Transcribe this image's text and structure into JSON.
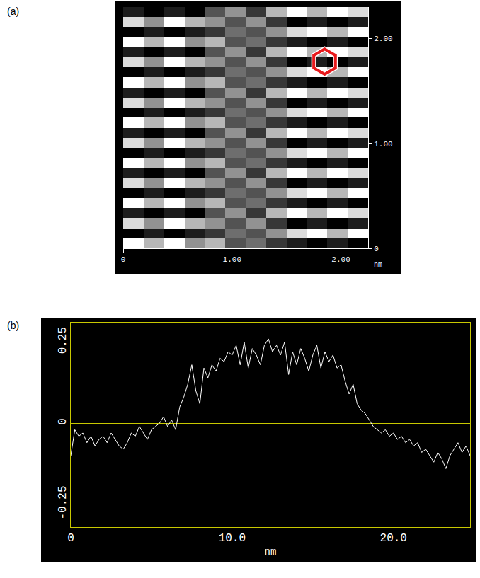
{
  "chart_data": [
    {
      "panel": "(a)",
      "type": "heatmap",
      "x_label": "nm",
      "xlim": [
        0,
        2.25
      ],
      "ylim": [
        0,
        2.3
      ],
      "xticks": [
        0,
        {
          "value": 1,
          "label": "1.00"
        },
        {
          "value": 2,
          "label": "2.00"
        }
      ],
      "yticks": [
        0,
        {
          "value": 1,
          "label": "1.00"
        },
        {
          "value": 2,
          "label": "2.00"
        }
      ],
      "z": [
        [
          9,
          7,
          9,
          6,
          7,
          4,
          5,
          3,
          2,
          1,
          2,
          1
        ],
        [
          1,
          2,
          1,
          2,
          3,
          5,
          4,
          6,
          8,
          9,
          7,
          9
        ],
        [
          8,
          6,
          9,
          7,
          6,
          4,
          6,
          3,
          1,
          2,
          1,
          2
        ],
        [
          2,
          1,
          2,
          1,
          4,
          6,
          3,
          7,
          9,
          7,
          9,
          8
        ],
        [
          9,
          7,
          9,
          6,
          7,
          4,
          5,
          3,
          2,
          1,
          2,
          1
        ],
        [
          1,
          2,
          1,
          2,
          3,
          5,
          4,
          6,
          8,
          9,
          7,
          9
        ],
        [
          8,
          6,
          9,
          7,
          6,
          4,
          6,
          3,
          1,
          2,
          1,
          2
        ],
        [
          2,
          1,
          2,
          1,
          4,
          6,
          3,
          7,
          9,
          7,
          9,
          8
        ],
        [
          9,
          7,
          9,
          6,
          7,
          4,
          5,
          3,
          2,
          1,
          2,
          1
        ],
        [
          1,
          2,
          1,
          2,
          3,
          5,
          4,
          6,
          8,
          9,
          7,
          9
        ],
        [
          8,
          6,
          9,
          7,
          6,
          4,
          6,
          3,
          1,
          2,
          1,
          2
        ],
        [
          2,
          1,
          2,
          1,
          4,
          6,
          3,
          7,
          9,
          7,
          9,
          8
        ],
        [
          9,
          7,
          9,
          6,
          7,
          4,
          5,
          3,
          2,
          1,
          2,
          1
        ],
        [
          1,
          2,
          1,
          2,
          3,
          5,
          4,
          6,
          8,
          9,
          7,
          9
        ],
        [
          8,
          6,
          9,
          7,
          6,
          4,
          6,
          3,
          1,
          2,
          1,
          2
        ],
        [
          2,
          1,
          2,
          1,
          4,
          6,
          3,
          7,
          9,
          7,
          9,
          8
        ],
        [
          9,
          7,
          9,
          6,
          7,
          4,
          5,
          3,
          2,
          1,
          2,
          1
        ],
        [
          1,
          2,
          1,
          2,
          3,
          5,
          4,
          6,
          8,
          9,
          7,
          9
        ],
        [
          8,
          6,
          9,
          7,
          6,
          4,
          6,
          3,
          1,
          2,
          1,
          2
        ],
        [
          2,
          1,
          2,
          1,
          4,
          6,
          3,
          7,
          9,
          7,
          9,
          8
        ],
        [
          9,
          7,
          9,
          6,
          7,
          4,
          5,
          3,
          2,
          1,
          2,
          1
        ],
        [
          1,
          2,
          1,
          2,
          3,
          5,
          4,
          6,
          8,
          9,
          7,
          9
        ],
        [
          8,
          6,
          9,
          7,
          6,
          4,
          6,
          3,
          1,
          2,
          1,
          2
        ],
        [
          2,
          1,
          2,
          1,
          4,
          6,
          3,
          7,
          9,
          7,
          9,
          8
        ]
      ]
    },
    {
      "panel": "(b)",
      "type": "line",
      "x_label": "nm",
      "color": "#ffffff",
      "xlim": [
        0,
        24.75
      ],
      "ylim": [
        -0.32,
        0.31
      ],
      "xticks": [
        0,
        {
          "value": 10,
          "label": "10.0"
        },
        {
          "value": 20,
          "label": "20.0"
        }
      ],
      "yticks": [
        -0.25,
        0,
        0.25
      ],
      "x": [
        0,
        0.25,
        0.5,
        0.75,
        1,
        1.25,
        1.5,
        1.75,
        2,
        2.25,
        2.5,
        2.75,
        3,
        3.25,
        3.5,
        3.75,
        4,
        4.25,
        4.5,
        4.75,
        5,
        5.25,
        5.5,
        5.75,
        6,
        6.25,
        6.5,
        6.75,
        7,
        7.25,
        7.5,
        7.75,
        8,
        8.25,
        8.5,
        8.75,
        9,
        9.25,
        9.5,
        9.75,
        10,
        10.25,
        10.5,
        10.75,
        11,
        11.25,
        11.5,
        11.75,
        12,
        12.25,
        12.5,
        12.75,
        13,
        13.25,
        13.5,
        13.75,
        14,
        14.25,
        14.5,
        14.75,
        15,
        15.25,
        15.5,
        15.75,
        16,
        16.25,
        16.5,
        16.75,
        17,
        17.25,
        17.5,
        17.75,
        18,
        18.25,
        18.5,
        18.75,
        19,
        19.25,
        19.5,
        19.75,
        20,
        20.25,
        20.5,
        20.75,
        21,
        21.25,
        21.5,
        21.75,
        22,
        22.25,
        22.5,
        22.75,
        23,
        23.25,
        23.5,
        23.75,
        24,
        24.25,
        24.5,
        24.75
      ],
      "values": [
        -0.1,
        -0.02,
        -0.04,
        -0.03,
        -0.06,
        -0.04,
        -0.07,
        -0.05,
        -0.04,
        -0.06,
        -0.03,
        -0.05,
        -0.07,
        -0.08,
        -0.06,
        -0.03,
        -0.04,
        -0.01,
        -0.03,
        -0.05,
        -0.02,
        -0.01,
        0.0,
        0.02,
        -0.01,
        0.01,
        -0.02,
        0.05,
        0.08,
        0.12,
        0.18,
        0.1,
        0.06,
        0.17,
        0.14,
        0.18,
        0.16,
        0.2,
        0.19,
        0.22,
        0.21,
        0.24,
        0.18,
        0.25,
        0.17,
        0.23,
        0.21,
        0.18,
        0.24,
        0.26,
        0.22,
        0.24,
        0.21,
        0.25,
        0.15,
        0.22,
        0.18,
        0.23,
        0.2,
        0.16,
        0.21,
        0.24,
        0.17,
        0.22,
        0.19,
        0.21,
        0.17,
        0.18,
        0.13,
        0.09,
        0.12,
        0.06,
        0.04,
        0.03,
        0.01,
        -0.01,
        -0.02,
        -0.03,
        -0.02,
        -0.04,
        -0.03,
        -0.05,
        -0.04,
        -0.06,
        -0.05,
        -0.07,
        -0.06,
        -0.09,
        -0.08,
        -0.1,
        -0.12,
        -0.09,
        -0.11,
        -0.14,
        -0.1,
        -0.08,
        -0.06,
        -0.09,
        -0.07,
        -0.1
      ]
    }
  ]
}
